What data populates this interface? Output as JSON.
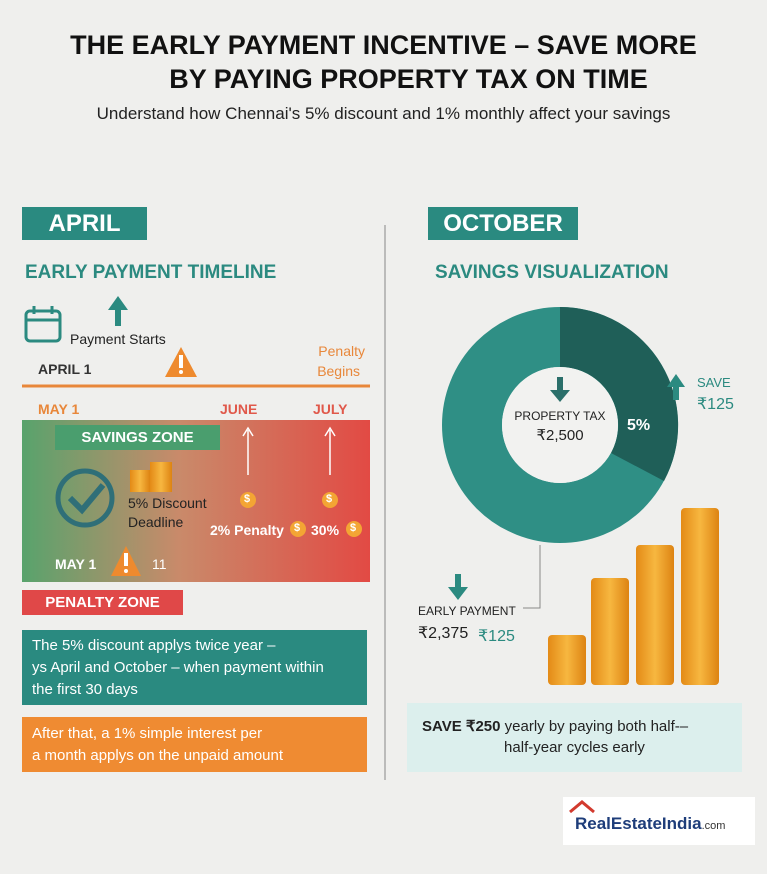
{
  "header": {
    "title_lines": [
      "THE EARLY PAYMENT INCENTIVE – SAVE MORE",
      "BY PAYING PROPERTY TAX ON TIME"
    ],
    "subtitle": "Understand how Chennai's 5% discount and 1% monthly affect your savings"
  },
  "left": {
    "badge": "APRIL",
    "heading": "EARLY PAYMENT TIMELINE",
    "payment_starts": "Payment Starts",
    "april_1": "APRIL 1",
    "penalty_begins": [
      "Penalty",
      "Begins"
    ],
    "months": [
      "MAY 1",
      "JUNE",
      "JULY"
    ],
    "savings_zone": "SAVINGS ZONE",
    "discount_deadline": [
      "5% Discount",
      "Deadline"
    ],
    "penalty_2": "2% Penalty",
    "penalty_30": "30%",
    "coin_symbol": "$",
    "bottom_date": "MAY 1",
    "bottom_number": "11",
    "penalty_zone": "PENALTY ZONE",
    "note_1": [
      "The 5% discount applys twice year –",
      "ys April and October – when payment within",
      "the first 30 days"
    ],
    "note_2": [
      "After that, a 1% simple interest per",
      "a month applys on the unpaid amount"
    ]
  },
  "right": {
    "badge": "OCTOBER",
    "heading": "SAVINGS VISUALIZATION",
    "center_label": "PROPERTY TAX",
    "center_value": "₹2,500",
    "slice_label": "5%",
    "save_label": "SAVE",
    "save_value": "₹125",
    "early_label": "EARLY PAYMENT",
    "early_value": "₹2,375",
    "early_save": "₹125",
    "summary_bold": "SAVE ₹250",
    "summary_lines": [
      "yearly by paying both half-–",
      "half-year cycles early"
    ]
  },
  "logo": {
    "brand": "RealEstateIndia",
    "suffix": ".com"
  }
}
